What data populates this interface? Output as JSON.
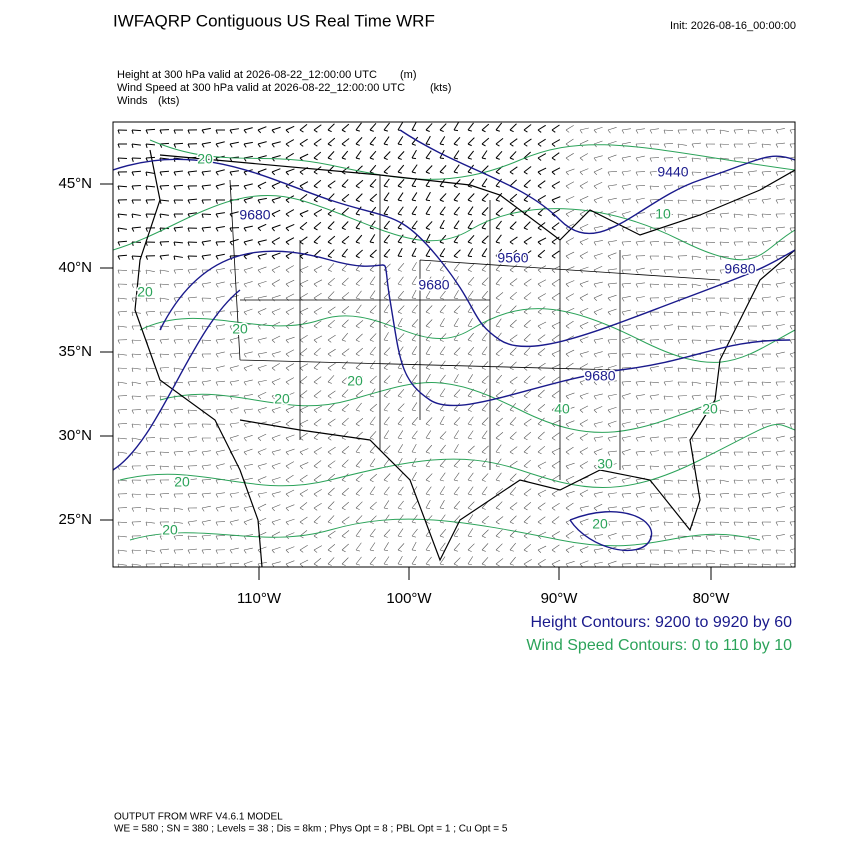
{
  "header": {
    "title": "IWFAQRP Contiguous US Real Time WRF",
    "init": "Init: 2026-08-16_00:00:00"
  },
  "fields": [
    {
      "description": "Height at 300 hPa valid at 2026-08-22_12:00:00 UTC",
      "units": "(m)"
    },
    {
      "description": "Wind Speed at 300 hPa valid at 2026-08-22_12:00:00 UTC",
      "units": "(kts)"
    },
    {
      "description": "Winds",
      "units": "(kts)"
    }
  ],
  "map": {
    "lat_labels": [
      "45°N",
      "40°N",
      "35°N",
      "30°N",
      "25°N"
    ],
    "lon_labels": [
      "110°W",
      "100°W",
      "90°W",
      "80°W"
    ],
    "height_labels": [
      "9440",
      "9680",
      "9560",
      "9680",
      "9680",
      "9680"
    ],
    "wind_labels": [
      "20",
      "20",
      "20",
      "20",
      "20",
      "20",
      "20",
      "20",
      "40",
      "30",
      "10",
      "20"
    ]
  },
  "legend": {
    "height": "Height Contours: 9200 to 9920 by 60",
    "wind": "Wind Speed Contours: 0 to 110 by 10"
  },
  "footer": {
    "line1": "OUTPUT FROM WRF V4.6.1 MODEL",
    "line2": "WE = 580 ; SN = 380 ; Levels = 38 ; Dis = 8km ; Phys Opt = 8 ; PBL Opt = 1 ; Cu Opt = 5"
  }
}
